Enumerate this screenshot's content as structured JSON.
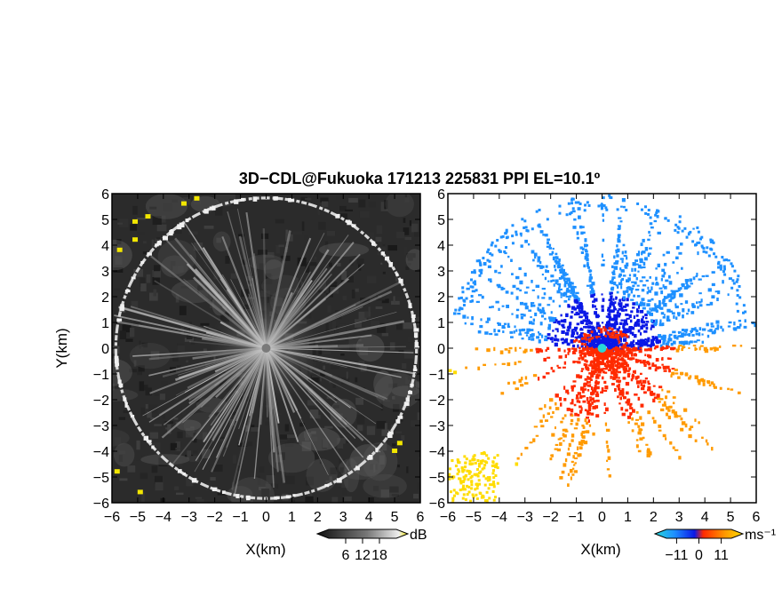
{
  "title": "3D−CDL@Fukuoka 171213 225831 PPI EL=10.1º",
  "colors": {
    "background": "#ffffff",
    "panel_bg": "#2b2b2b",
    "ring": "#d8d8d8",
    "yellow": "#f2e600",
    "velocity_neg_far": "#1e90ff",
    "velocity_neg_near": "#0a18e6",
    "velocity_pos_near": "#ff2a00",
    "velocity_pos_far": "#ff9a00",
    "velocity_pos_extreme": "#ffdc00",
    "center": "#27d8d8"
  },
  "chart_data": [
    {
      "type": "heatmap",
      "name": "reflectivity",
      "xlabel": "X(km)",
      "ylabel": "Y(km)",
      "xlim": [
        -6,
        6
      ],
      "ylim": [
        -6,
        6
      ],
      "xticks": [
        "−6",
        "−5",
        "−4",
        "−3",
        "−2",
        "−1",
        "0",
        "1",
        "2",
        "3",
        "4",
        "5",
        "6"
      ],
      "yticks": [
        "6",
        "5",
        "4",
        "3",
        "2",
        "1",
        "0",
        "−1",
        "−2",
        "−3",
        "−4",
        "−5",
        "−6"
      ],
      "colorbar": {
        "unit": "dB",
        "ticks": [
          "6",
          "12",
          "18"
        ],
        "range": [
          0,
          24
        ]
      }
    },
    {
      "type": "heatmap",
      "name": "doppler_velocity",
      "xlabel": "X(km)",
      "xlim": [
        -6,
        6
      ],
      "ylim": [
        -6,
        6
      ],
      "xticks": [
        "−6",
        "−5",
        "−4",
        "−3",
        "−2",
        "−1",
        "0",
        "1",
        "2",
        "3",
        "4",
        "5",
        "6"
      ],
      "yticks": [
        "6",
        "5",
        "4",
        "3",
        "2",
        "1",
        "0",
        "−1",
        "−2",
        "−3",
        "−4",
        "−5",
        "−6"
      ],
      "colorbar": {
        "unit": "ms⁻¹",
        "ticks": [
          "−11",
          "0",
          "11"
        ],
        "range": [
          -16,
          16
        ]
      }
    }
  ]
}
